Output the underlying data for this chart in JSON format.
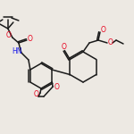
{
  "bg_color": "#ede9e3",
  "bond_color": "#1a1a1a",
  "atom_colors": {
    "O": "#e8001c",
    "N": "#2020e8",
    "C": "#1a1a1a"
  },
  "line_width": 1.1,
  "figsize": [
    1.5,
    1.5
  ],
  "dpi": 100
}
